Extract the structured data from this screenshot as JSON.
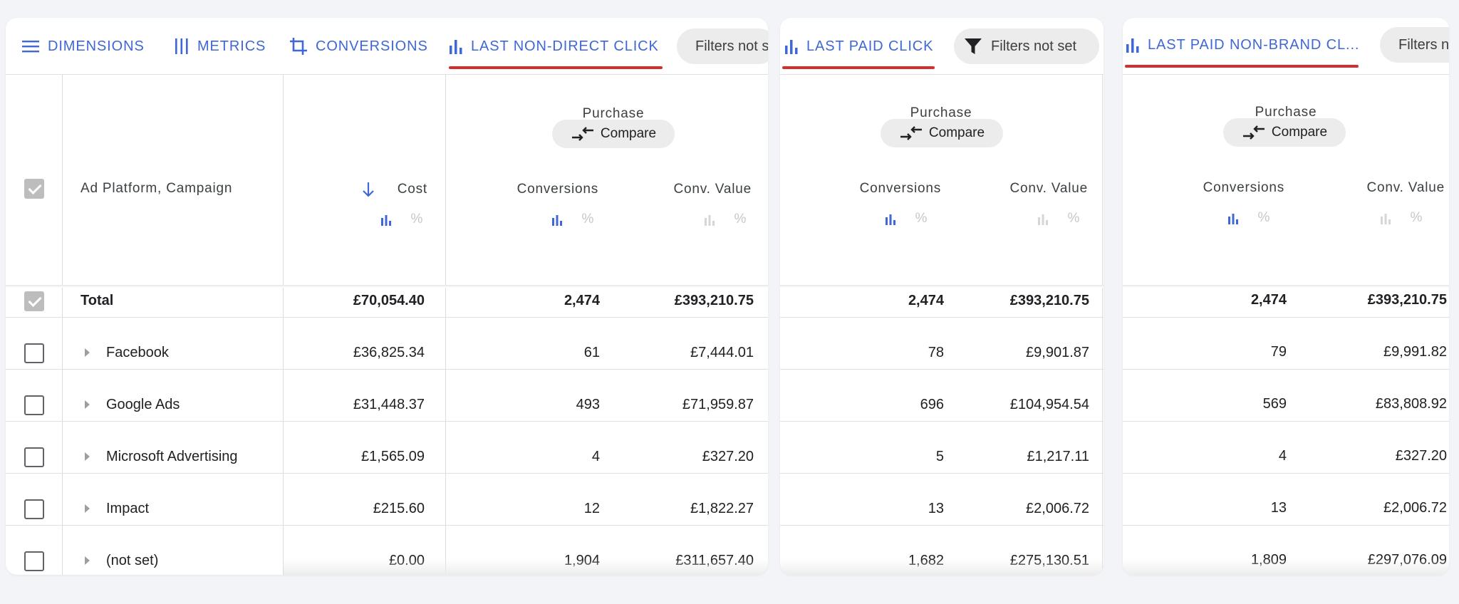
{
  "toolbar": {
    "dimensions": "DIMENSIONS",
    "metrics": "METRICS",
    "conversions": "CONVERSIONS"
  },
  "panels": [
    {
      "model": "LAST NON-DIRECT CLICK",
      "filters": "Filters not set",
      "group": "Purchase",
      "compare": "Compare",
      "col_conversions": "Conversions",
      "col_value": "Conv. Value",
      "total": {
        "conversions": "2,474",
        "value": "£393,210.75"
      },
      "rows": [
        {
          "conversions": "61",
          "value": "£7,444.01"
        },
        {
          "conversions": "493",
          "value": "£71,959.87"
        },
        {
          "conversions": "4",
          "value": "£327.20"
        },
        {
          "conversions": "12",
          "value": "£1,822.27"
        },
        {
          "conversions": "1,904",
          "value": "£311,657.40"
        }
      ]
    },
    {
      "model": "LAST PAID CLICK",
      "filters": "Filters not set",
      "group": "Purchase",
      "compare": "Compare",
      "col_conversions": "Conversions",
      "col_value": "Conv. Value",
      "total": {
        "conversions": "2,474",
        "value": "£393,210.75"
      },
      "rows": [
        {
          "conversions": "78",
          "value": "£9,901.87"
        },
        {
          "conversions": "696",
          "value": "£104,954.54"
        },
        {
          "conversions": "5",
          "value": "£1,217.11"
        },
        {
          "conversions": "13",
          "value": "£2,006.72"
        },
        {
          "conversions": "1,682",
          "value": "£275,130.51"
        }
      ]
    },
    {
      "model": "LAST PAID NON-BRAND CL...",
      "filters": "Filters not set",
      "group": "Purchase",
      "compare": "Compare",
      "col_conversions": "Conversions",
      "col_value": "Conv. Value",
      "total": {
        "conversions": "2,474",
        "value": "£393,210.75"
      },
      "rows": [
        {
          "conversions": "79",
          "value": "£9,991.82"
        },
        {
          "conversions": "569",
          "value": "£83,808.92"
        },
        {
          "conversions": "4",
          "value": "£327.20"
        },
        {
          "conversions": "13",
          "value": "£2,006.72"
        },
        {
          "conversions": "1,809",
          "value": "£297,076.09"
        }
      ]
    }
  ],
  "table": {
    "dimension_header": "Ad Platform, Campaign",
    "cost_header": "Cost",
    "sort": "descending",
    "total_label": "Total",
    "total_cost": "£70,054.40",
    "rows": [
      {
        "name": "Facebook",
        "cost": "£36,825.34"
      },
      {
        "name": "Google Ads",
        "cost": "£31,448.37"
      },
      {
        "name": "Microsoft Advertising",
        "cost": "£1,565.09"
      },
      {
        "name": "Impact",
        "cost": "£215.60"
      },
      {
        "name": "(not set)",
        "cost": "£0.00"
      }
    ]
  },
  "colors": {
    "accent": "#3f67d6",
    "underline": "#d32f2f",
    "pill": "#ececec"
  }
}
